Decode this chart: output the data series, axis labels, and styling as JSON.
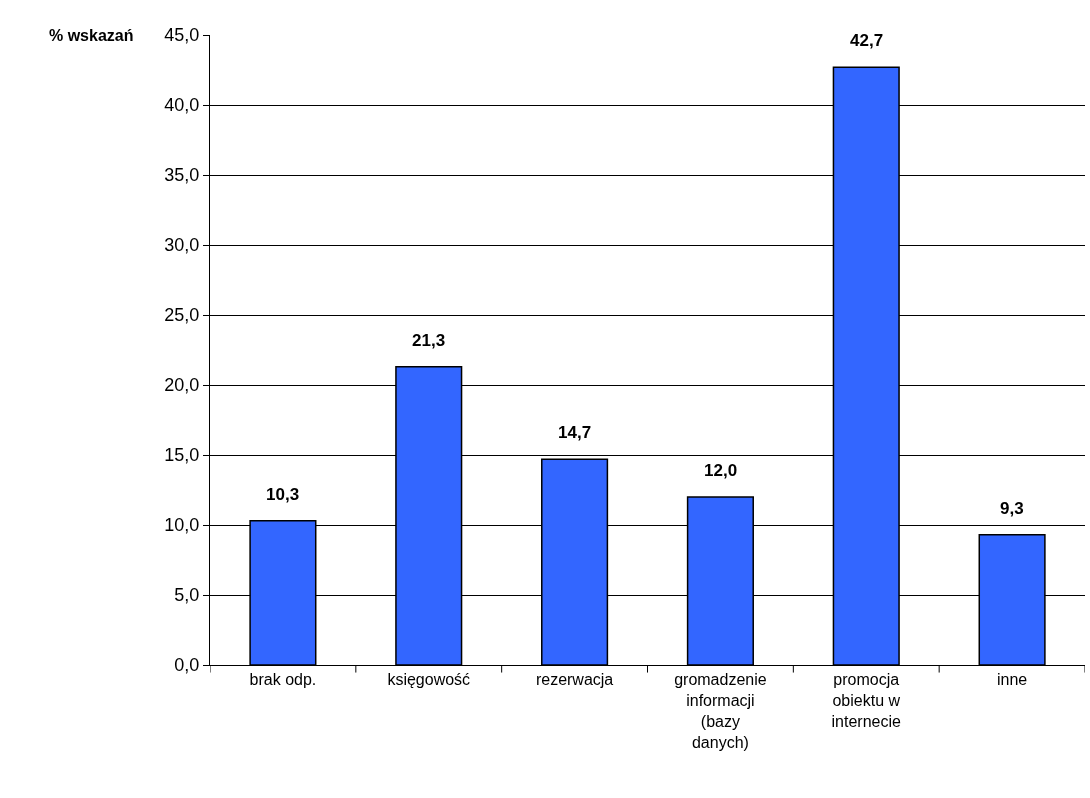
{
  "chart_data": {
    "type": "bar",
    "ylabel": "% wskazań",
    "categories": [
      "brak odp.",
      "księgowość",
      "rezerwacja",
      "gromadzenie informacji (bazy danych)",
      "promocja obiektu w internecie",
      "inne"
    ],
    "values": [
      10.3,
      21.3,
      14.7,
      12.0,
      42.7,
      9.3
    ],
    "value_labels": [
      "10,3",
      "21,3",
      "14,7",
      "12,0",
      "42,7",
      "9,3"
    ],
    "color": "#3366ff",
    "ylim": [
      0,
      45
    ],
    "yticks": [
      {
        "value": 0,
        "label": "0,0"
      },
      {
        "value": 5,
        "label": "5,0"
      },
      {
        "value": 10,
        "label": "10,0"
      },
      {
        "value": 15,
        "label": "15,0"
      },
      {
        "value": 20,
        "label": "20,0"
      },
      {
        "value": 25,
        "label": "25,0"
      },
      {
        "value": 30,
        "label": "30,0"
      },
      {
        "value": 35,
        "label": "35,0"
      },
      {
        "value": 40,
        "label": "40,0"
      },
      {
        "value": 45,
        "label": "45,0"
      }
    ],
    "grid": "y"
  }
}
